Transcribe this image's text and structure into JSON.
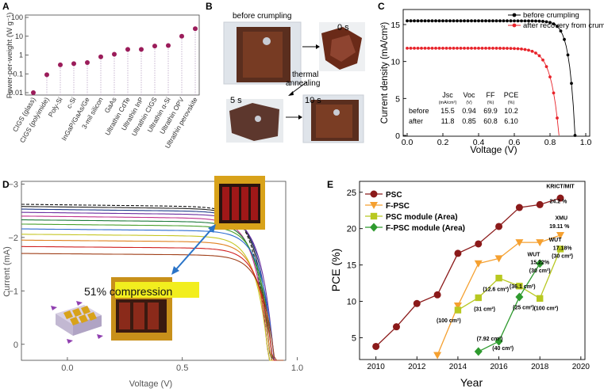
{
  "panel_labels": [
    "A",
    "B",
    "C",
    "D",
    "E"
  ],
  "chart_data": [
    {
      "panel": "A",
      "type": "scatter",
      "ylabel": "Power-per-weight (W g⁻¹)",
      "yscale": "log",
      "ylim": [
        0.01,
        100
      ],
      "yticks": [
        "0.01",
        "0.1",
        "1",
        "10",
        "100"
      ],
      "categories": [
        "CIGS (glass)",
        "CIGS (polyimide)",
        "Poly-Si",
        "c-Si",
        "InGaP/GaAs/Ge",
        "3-mil silicon",
        "GaAs",
        "Ultrathin CdTe",
        "Ultrathin InP",
        "Ultrathin CIGS",
        "Ultrathin α-Si",
        "Ultrathin OPV",
        "Ultrathin perovskite"
      ],
      "values": [
        0.01,
        0.09,
        0.3,
        0.35,
        0.4,
        0.8,
        1.1,
        2.0,
        2.0,
        3.0,
        3.2,
        10,
        25
      ],
      "color": "#9b1c5a"
    },
    {
      "panel": "B",
      "type": "photo-sequence",
      "caption": "before crumpling",
      "frames": [
        "0 s",
        "5 s",
        "10 s"
      ],
      "arrow_label_1": "thermal",
      "arrow_label_2": "annealing"
    },
    {
      "panel": "C",
      "type": "line",
      "xlabel": "Voltage (V)",
      "ylabel": "Current density (mA/cm²)",
      "xlim": [
        0.0,
        1.0
      ],
      "ylim": [
        0,
        15
      ],
      "xticks": [
        "0.0",
        "0.2",
        "0.4",
        "0.6",
        "0.8",
        "1.0"
      ],
      "yticks": [
        "0",
        "5",
        "10",
        "15"
      ],
      "series": [
        {
          "name": "before crumpling",
          "color": "#000000",
          "jsc": 15.5,
          "voc": 0.94,
          "ff": 69.9
        },
        {
          "name": "after recovery from crumpling",
          "color": "#e8232a",
          "jsc": 11.8,
          "voc": 0.85,
          "ff": 60.8
        }
      ],
      "table": {
        "headers": [
          {
            "main": "Jsc",
            "unit": "(mA/cm²)"
          },
          {
            "main": "Voc",
            "unit": "(V)"
          },
          {
            "main": "FF",
            "unit": "(%)"
          },
          {
            "main": "PCE",
            "unit": "(%)"
          }
        ],
        "rows": [
          {
            "label": "before",
            "cells": [
              "15.5",
              "0.94",
              "69.9",
              "10.2"
            ]
          },
          {
            "label": "after",
            "cells": [
              "11.8",
              "0.85",
              "60.8",
              "6.10"
            ]
          }
        ]
      }
    },
    {
      "panel": "D",
      "type": "line",
      "xlabel": "Voltage (V)",
      "ylabel": "Current (mA)",
      "xlim": [
        -0.2,
        0.95
      ],
      "ylim": [
        0.3,
        -3.05
      ],
      "xticks": [
        "0.0",
        "0.5",
        "1.0"
      ],
      "xtick_values": [
        0.0,
        0.5,
        1.0
      ],
      "yticks": [
        "−3",
        "−2",
        "−1",
        "0"
      ],
      "ytick_values": [
        -3,
        -2,
        -1,
        0
      ],
      "annotation": "51% compression",
      "series": [
        {
          "isc": -2.62,
          "color": "#111111",
          "dash": true
        },
        {
          "isc": -2.58,
          "color": "#222222"
        },
        {
          "isc": -2.53,
          "color": "#1f3a8a"
        },
        {
          "isc": -2.47,
          "color": "#6b2fa0"
        },
        {
          "isc": -2.4,
          "color": "#c0308c"
        },
        {
          "isc": -2.33,
          "color": "#1f7a3a"
        },
        {
          "isc": -2.25,
          "color": "#4aa02c"
        },
        {
          "isc": -2.16,
          "color": "#2a6ad0"
        },
        {
          "isc": -2.06,
          "color": "#c6c624"
        },
        {
          "isc": -1.95,
          "color": "#e08020"
        },
        {
          "isc": -1.83,
          "color": "#d02020"
        },
        {
          "isc": -1.7,
          "color": "#a0401a"
        }
      ]
    },
    {
      "panel": "E",
      "type": "line",
      "xlabel": "Year",
      "ylabel": "PCE (%)",
      "xlim": [
        2009.2,
        2020.2
      ],
      "ylim": [
        2,
        26.5
      ],
      "xticks": [
        "2010",
        "2012",
        "2014",
        "2016",
        "2018",
        "2020"
      ],
      "yticks": [
        "5",
        "10",
        "15",
        "20",
        "25"
      ],
      "series": [
        {
          "name": "PSC",
          "color": "#8b1a1a",
          "marker": "circle",
          "x": [
            2010,
            2011,
            2012,
            2013,
            2014,
            2015,
            2016,
            2017,
            2018,
            2019
          ],
          "y": [
            3.8,
            6.5,
            9.7,
            10.9,
            16.6,
            17.9,
            20.3,
            22.9,
            23.3,
            24.2
          ]
        },
        {
          "name": "F-PSC",
          "color": "#f5a030",
          "marker": "triangle-down",
          "x": [
            2013,
            2014,
            2015,
            2016,
            2017,
            2018,
            2019
          ],
          "y": [
            2.6,
            9.4,
            15.2,
            15.9,
            18.1,
            18.1,
            19.1
          ]
        },
        {
          "name": "PSC module (Area)",
          "color": "#b8c820",
          "marker": "square",
          "x": [
            2014,
            2015,
            2016,
            2017,
            2018,
            2019
          ],
          "y": [
            8.8,
            10.5,
            13.2,
            12.1,
            10.4,
            17.2
          ]
        },
        {
          "name": "F-PSC module (Area)",
          "color": "#2e9a2e",
          "marker": "diamond",
          "x": [
            2015,
            2016,
            2017,
            2018
          ],
          "y": [
            3.1,
            4.5,
            10.6,
            15.2
          ]
        }
      ],
      "annotations": [
        {
          "text": "KRICT/MIT",
          "x": 2019,
          "y": 25.6
        },
        {
          "text": "24.2 %",
          "x": 2018.9,
          "y": 23.5
        },
        {
          "text": "XMU",
          "x": 2019.05,
          "y": 21.2
        },
        {
          "text": "19.11 %",
          "x": 2018.95,
          "y": 20.1
        },
        {
          "text": "WUT",
          "x": 2018.75,
          "y": 18.2
        },
        {
          "text": "17.18%",
          "x": 2019.1,
          "y": 17.1
        },
        {
          "text": "(30 cm²)",
          "x": 2019.1,
          "y": 16.0
        },
        {
          "text": "WUT",
          "x": 2017.7,
          "y": 16.2
        },
        {
          "text": "15.22%",
          "x": 2018.0,
          "y": 15.1
        },
        {
          "text": "(30 cm²)",
          "x": 2018.0,
          "y": 14.0
        },
        {
          "text": "(36.1 cm²)",
          "x": 2017.15,
          "y": 11.8
        },
        {
          "text": "(12.6 cm²)",
          "x": 2015.85,
          "y": 11.4
        },
        {
          "text": "(31 cm²)",
          "x": 2015.3,
          "y": 8.7
        },
        {
          "text": "(100 cm²)",
          "x": 2013.55,
          "y": 7.1
        },
        {
          "text": "(25 cm²)",
          "x": 2017.2,
          "y": 8.9
        },
        {
          "text": "(100 cm²)",
          "x": 2018.3,
          "y": 8.8
        },
        {
          "text": "(7.92 cm²)",
          "x": 2015.55,
          "y": 4.6
        },
        {
          "text": "(40 cm²)",
          "x": 2016.2,
          "y": 3.3
        }
      ]
    }
  ]
}
